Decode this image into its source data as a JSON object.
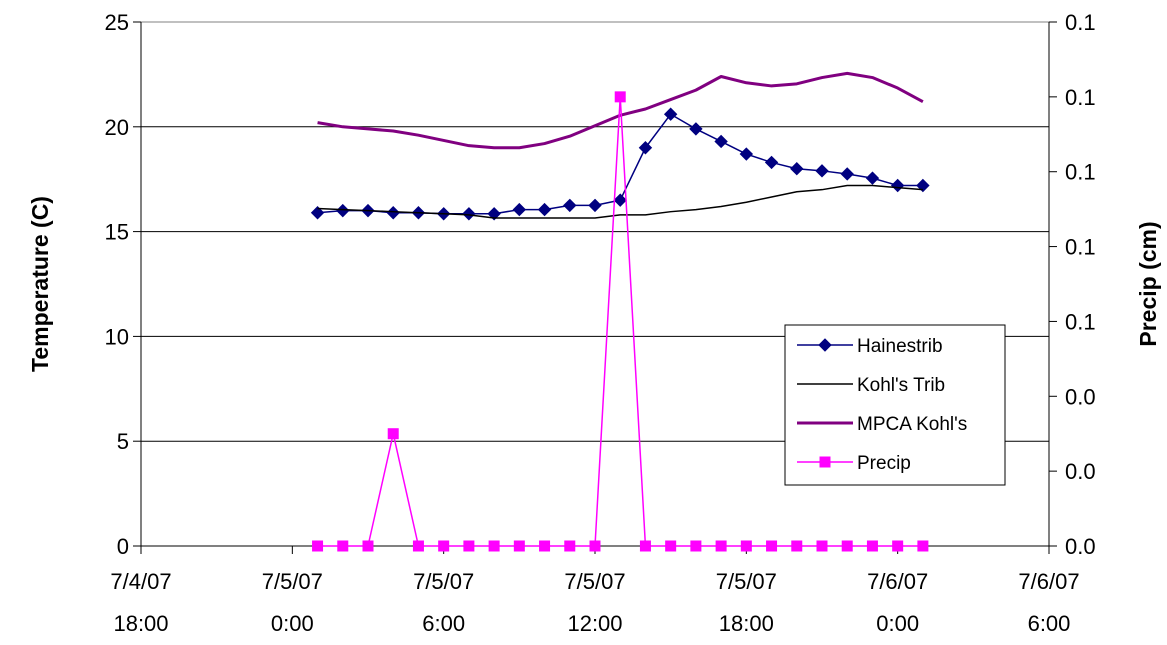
{
  "chart_data": {
    "type": "line",
    "title": "",
    "ylabel": "Temperature (C)",
    "y2label": "Precip (cm)",
    "xlabel": "",
    "x_range_hours": [
      -6,
      30
    ],
    "x_ticks": [
      {
        "h": -6,
        "date": "7/4/07",
        "time": "18:00"
      },
      {
        "h": 0,
        "date": "7/5/07",
        "time": "0:00"
      },
      {
        "h": 6,
        "date": "7/5/07",
        "time": "6:00"
      },
      {
        "h": 12,
        "date": "7/5/07",
        "time": "12:00"
      },
      {
        "h": 18,
        "date": "7/5/07",
        "time": "18:00"
      },
      {
        "h": 24,
        "date": "7/6/07",
        "time": "0:00"
      },
      {
        "h": 30,
        "date": "7/6/07",
        "time": "6:00"
      }
    ],
    "ylim": [
      0,
      25
    ],
    "y_ticks": [
      "0",
      "5",
      "10",
      "15",
      "20",
      "25"
    ],
    "y2lim": [
      0,
      0.14
    ],
    "y2_ticks": [
      {
        "v": 0.0,
        "label": "0.0"
      },
      {
        "v": 0.02,
        "label": "0.0"
      },
      {
        "v": 0.04,
        "label": "0.0"
      },
      {
        "v": 0.06,
        "label": "0.1"
      },
      {
        "v": 0.08,
        "label": "0.1"
      },
      {
        "v": 0.1,
        "label": "0.1"
      },
      {
        "v": 0.12,
        "label": "0.1"
      },
      {
        "v": 0.14,
        "label": "0.1"
      }
    ],
    "grid": "horizontal",
    "legend_position": "right",
    "x_hours": [
      1,
      2,
      3,
      4,
      5,
      6,
      7,
      8,
      9,
      10,
      11,
      12,
      13,
      14,
      15,
      16,
      17,
      18,
      19,
      20,
      21,
      22,
      23,
      24,
      25
    ],
    "series": [
      {
        "name": "Hainestrib",
        "color": "#000080",
        "marker": "diamond",
        "axis": "left",
        "values": [
          15.9,
          16.0,
          16.0,
          15.9,
          15.9,
          15.85,
          15.85,
          15.85,
          16.05,
          16.05,
          16.25,
          16.25,
          16.5,
          19.0,
          20.6,
          19.9,
          19.3,
          18.7,
          18.3,
          18.0,
          17.9,
          17.75,
          17.55,
          17.2,
          17.2
        ]
      },
      {
        "name": "Kohl's Trib",
        "color": "#000000",
        "marker": "none",
        "axis": "left",
        "values": [
          16.1,
          16.05,
          16.0,
          15.95,
          15.9,
          15.85,
          15.8,
          15.65,
          15.65,
          15.65,
          15.65,
          15.65,
          15.8,
          15.8,
          15.95,
          16.05,
          16.2,
          16.4,
          16.65,
          16.9,
          17.0,
          17.2,
          17.2,
          17.1,
          17.0
        ]
      },
      {
        "name": "MPCA Kohl's",
        "color": "#800080",
        "marker": "none",
        "axis": "left",
        "values": [
          20.2,
          20.0,
          19.9,
          19.8,
          19.6,
          19.35,
          19.1,
          19.0,
          19.0,
          19.2,
          19.55,
          20.05,
          20.55,
          20.85,
          21.3,
          21.75,
          22.4,
          22.1,
          21.95,
          22.05,
          22.35,
          22.55,
          22.35,
          21.85,
          21.2
        ]
      },
      {
        "name": "Precip",
        "color": "#ff00ff",
        "marker": "square",
        "axis": "right",
        "values": [
          0,
          0,
          0,
          0.03,
          0,
          0,
          0,
          0,
          0,
          0,
          0,
          0,
          0.12,
          0,
          0,
          0,
          0,
          0,
          0,
          0,
          0,
          0,
          0,
          0,
          0
        ]
      }
    ]
  }
}
